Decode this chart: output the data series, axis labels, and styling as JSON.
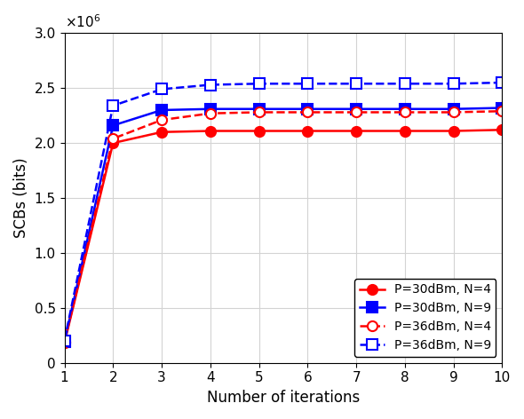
{
  "x": [
    1,
    2,
    3,
    4,
    5,
    6,
    7,
    8,
    9,
    10
  ],
  "series": {
    "P30_N4": {
      "label": "P=30dBm, N=4",
      "color": "#ff0000",
      "linestyle": "-",
      "marker": "o",
      "values": [
        180000,
        2000000,
        2100000,
        2110000,
        2110000,
        2110000,
        2110000,
        2110000,
        2110000,
        2120000
      ]
    },
    "P30_N9": {
      "label": "P=30dBm, N=9",
      "color": "#0000ff",
      "linestyle": "-",
      "marker": "s",
      "values": [
        190000,
        2160000,
        2300000,
        2310000,
        2310000,
        2310000,
        2310000,
        2310000,
        2310000,
        2320000
      ]
    },
    "P36_N4": {
      "label": "P=36dBm, N=4",
      "color": "#ff0000",
      "linestyle": "--",
      "marker": "o",
      "values": [
        190000,
        2040000,
        2210000,
        2270000,
        2280000,
        2280000,
        2280000,
        2280000,
        2280000,
        2290000
      ]
    },
    "P36_N9": {
      "label": "P=36dBm, N=9",
      "color": "#0000ff",
      "linestyle": "--",
      "marker": "s",
      "values": [
        200000,
        2340000,
        2490000,
        2530000,
        2540000,
        2540000,
        2540000,
        2540000,
        2540000,
        2550000
      ]
    }
  },
  "xlabel": "Number of iterations",
  "ylabel": "SCBs (bits)",
  "xlim": [
    1,
    10
  ],
  "ylim": [
    0,
    3000000
  ],
  "yticks": [
    0,
    500000,
    1000000,
    1500000,
    2000000,
    2500000,
    3000000
  ],
  "xticks": [
    1,
    2,
    3,
    4,
    5,
    6,
    7,
    8,
    9,
    10
  ],
  "legend_loc": "lower right",
  "markersize": 8,
  "linewidth": 1.8
}
